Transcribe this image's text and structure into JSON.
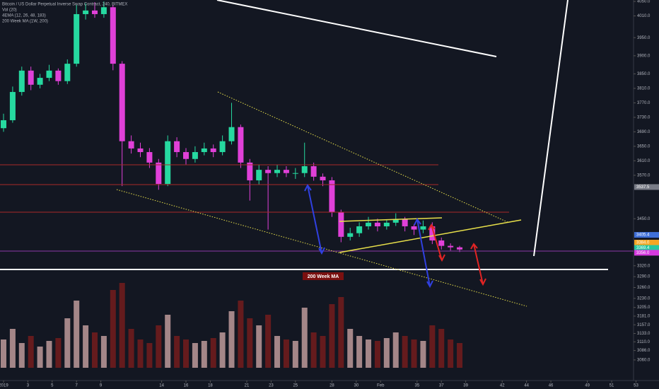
{
  "chart_data": {
    "type": "candlestick",
    "title": "Bitcoin / US Dollar Perpetual Inverse Swap Contract, 240, BITMEX",
    "indicators": [
      "Vol (20)",
      "4EMA (12, 26, 48, 183)",
      "200 Week MA (1W, 200)"
    ],
    "annotation": "200 Week MA",
    "up_color": "#26d9a0",
    "down_color": "#e040d8",
    "volume_colors": [
      "#c9a3a3",
      "#7a1d1d"
    ],
    "x": [
      1,
      1.75,
      2.5,
      3.25,
      4,
      4.75,
      5.5,
      6.25,
      7,
      7.75,
      8.5,
      9.25,
      10,
      10.75,
      11.5,
      12.25,
      13,
      13.75,
      14.5,
      15.25,
      16,
      16.75,
      17.5,
      18.25,
      19,
      19.75,
      20.5,
      21.25,
      22,
      22.75,
      23.5,
      24.25,
      25,
      25.75,
      26.5,
      27.25,
      28,
      28.75,
      29.5,
      30.25,
      31,
      31.75,
      32.5,
      33.25,
      34,
      34.75,
      35.5,
      36.25,
      37,
      37.75,
      38.5
    ],
    "open": [
      3700,
      3722,
      3800,
      3859,
      3820,
      3839,
      3859,
      3830,
      3878,
      4015,
      4025,
      4015,
      4034,
      3878,
      3664,
      3644,
      3634,
      3605,
      3546,
      3664,
      3634,
      3615,
      3634,
      3644,
      3634,
      3664,
      3703,
      3605,
      3556,
      3585,
      3576,
      3585,
      3576,
      3576,
      3595,
      3566,
      3556,
      3468,
      3400,
      3410,
      3429,
      3439,
      3429,
      3439,
      3449,
      3429,
      3420,
      3429,
      3390,
      3375,
      3371
    ],
    "high": [
      3740,
      3815,
      3870,
      3870,
      3850,
      3875,
      3865,
      3890,
      4040,
      4045,
      4048,
      4050,
      4040,
      3885,
      3680,
      3660,
      3645,
      3615,
      3680,
      3675,
      3645,
      3650,
      3660,
      3655,
      3680,
      3770,
      3710,
      3615,
      3600,
      3595,
      3600,
      3595,
      3590,
      3660,
      3605,
      3575,
      3565,
      3475,
      3425,
      3440,
      3455,
      3450,
      3448,
      3465,
      3455,
      3435,
      3445,
      3440,
      3398,
      3382,
      3375
    ],
    "low": [
      3690,
      3715,
      3790,
      3805,
      3810,
      3830,
      3820,
      3822,
      3870,
      4000,
      4005,
      4005,
      3860,
      3540,
      3630,
      3620,
      3590,
      3530,
      3540,
      3620,
      3600,
      3605,
      3625,
      3620,
      3625,
      3655,
      3590,
      3500,
      3545,
      3420,
      3565,
      3565,
      3560,
      3565,
      3555,
      3540,
      3455,
      3385,
      3390,
      3400,
      3420,
      3415,
      3420,
      3430,
      3415,
      3405,
      3410,
      3380,
      3365,
      3362,
      3358
    ],
    "close": [
      3722,
      3800,
      3859,
      3820,
      3839,
      3859,
      3830,
      3878,
      4015,
      4025,
      4015,
      4034,
      3878,
      3664,
      3644,
      3634,
      3605,
      3546,
      3664,
      3634,
      3615,
      3634,
      3644,
      3634,
      3664,
      3703,
      3605,
      3556,
      3585,
      3576,
      3585,
      3576,
      3576,
      3595,
      3566,
      3556,
      3468,
      3400,
      3410,
      3429,
      3439,
      3429,
      3439,
      3449,
      3429,
      3420,
      3429,
      3390,
      3375,
      3371,
      3365
    ],
    "volume": [
      40,
      55,
      35,
      45,
      30,
      38,
      42,
      70,
      95,
      60,
      50,
      45,
      110,
      120,
      55,
      40,
      35,
      60,
      75,
      45,
      40,
      35,
      38,
      42,
      50,
      80,
      95,
      70,
      60,
      75,
      45,
      40,
      38,
      85,
      50,
      45,
      90,
      100,
      55,
      45,
      40,
      38,
      42,
      50,
      45,
      40,
      38,
      60,
      55,
      40,
      35
    ],
    "xlim": [
      0.71,
      52.74
    ],
    "ylim": [
      3052,
      4054
    ],
    "xticks": [
      {
        "value": 1,
        "label": "2019"
      },
      3,
      5,
      7,
      9,
      14,
      16,
      18,
      21,
      23,
      25,
      28,
      30,
      {
        "value": 32,
        "label": "Feb"
      },
      35,
      37,
      39,
      42,
      44,
      46,
      49,
      51,
      53
    ],
    "yticks": [
      {
        "value": 4050,
        "label": "4050.0"
      },
      {
        "value": 4010,
        "label": "4010.0"
      },
      {
        "value": 3950,
        "label": "3950.0"
      },
      {
        "value": 3900,
        "label": "3900.0"
      },
      {
        "value": 3850,
        "label": "3850.0"
      },
      {
        "value": 3810,
        "label": "3810.0"
      },
      {
        "value": 3770,
        "label": "3770.0"
      },
      {
        "value": 3730,
        "label": "3730.0"
      },
      {
        "value": 3690,
        "label": "3690.0"
      },
      {
        "value": 3650,
        "label": "3650.0"
      },
      {
        "value": 3610,
        "label": "3610.0"
      },
      {
        "value": 3570,
        "label": "3570.0"
      },
      {
        "value": 3450,
        "label": "3450.0"
      },
      {
        "value": 3320,
        "label": "3320.0"
      },
      {
        "value": 3290,
        "label": "3290.0"
      },
      {
        "value": 3260,
        "label": "3260.0"
      },
      {
        "value": 3230,
        "label": "3230.0"
      },
      {
        "value": 3205,
        "label": "3205.0"
      },
      {
        "value": 3181,
        "label": "3181.0"
      },
      {
        "value": 3157,
        "label": "3157.0"
      },
      {
        "value": 3133,
        "label": "3133.0"
      },
      {
        "value": 3110,
        "label": "3110.0"
      },
      {
        "value": 3086,
        "label": "3086.0"
      },
      {
        "value": 3060,
        "label": "3060.0"
      }
    ],
    "price_labels": [
      {
        "value": 3537.5,
        "label": "3537.5",
        "color": "#787b86"
      },
      {
        "value": 3405.4,
        "label": "3405.4",
        "color": "#3f6fd8"
      },
      {
        "value": 3384,
        "label": "3384.0",
        "color": "#f5a623"
      },
      {
        "value": 3369.4,
        "label": "3369.4",
        "color": "#26c6a0"
      },
      {
        "value": 3356,
        "label": "3356.0",
        "color": "#d63adf"
      }
    ]
  }
}
